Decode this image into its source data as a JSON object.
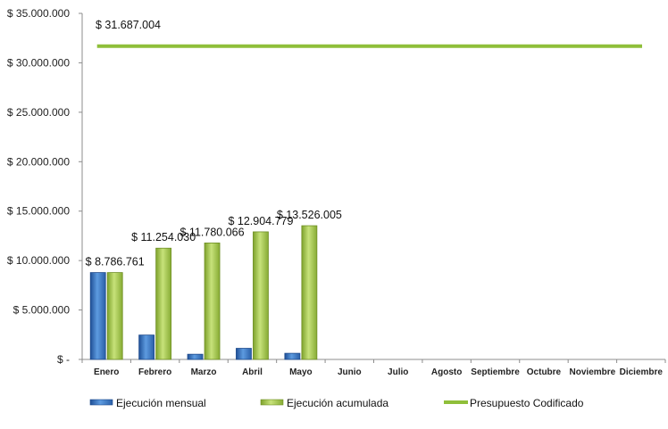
{
  "chart_data": {
    "type": "bar",
    "categories": [
      "Enero",
      "Febrero",
      "Marzo",
      "Abril",
      "Mayo",
      "Junio",
      "Julio",
      "Agosto",
      "Septiembre",
      "Octubre",
      "Noviembre",
      "Diciembre"
    ],
    "series": [
      {
        "name": "Ejecución mensual",
        "type": "bar",
        "color": "#3a7cc9",
        "values": [
          8786761,
          2467269,
          526036,
          1124713,
          621226,
          null,
          null,
          null,
          null,
          null,
          null,
          null
        ]
      },
      {
        "name": "Ejecución acumulada",
        "type": "bar",
        "color": "#9ac33f",
        "values": [
          8786761,
          11254030,
          11780066,
          12904779,
          13526005,
          null,
          null,
          null,
          null,
          null,
          null,
          null
        ],
        "data_labels": [
          "$ 8.786.761",
          "$ 11.254.030",
          "$ 11.780.066",
          "$ 12.904.779",
          "$ 13.526.005"
        ]
      },
      {
        "name": "Presupuesto Codificado",
        "type": "line",
        "color": "#8fbf3a",
        "values": [
          31687004,
          31687004,
          31687004,
          31687004,
          31687004,
          31687004,
          31687004,
          31687004,
          31687004,
          31687004,
          31687004,
          31687004
        ],
        "data_label": "$ 31.687.004"
      }
    ],
    "y_tick_values": [
      0,
      5000000,
      10000000,
      15000000,
      20000000,
      25000000,
      30000000,
      35000000
    ],
    "y_tick_labels": [
      "$ -",
      "$ 5.000.000",
      "$ 10.000.000",
      "$ 15.000.000",
      "$ 20.000.000",
      "$ 25.000.000",
      "$ 30.000.000",
      "$ 35.000.000"
    ],
    "ylim": [
      0,
      35000000
    ],
    "grid": false,
    "legend_position": "bottom"
  }
}
